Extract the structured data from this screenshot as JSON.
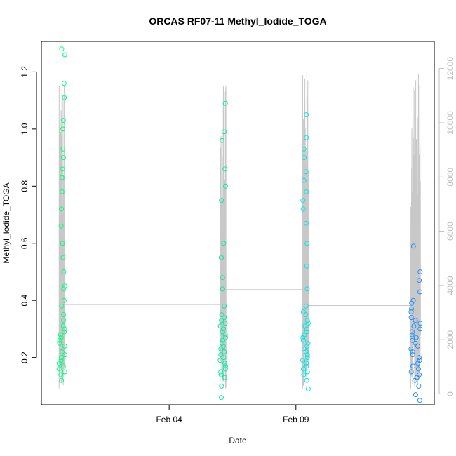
{
  "chart_data": {
    "type": "scatter",
    "title": "ORCAS RF07-11 Methyl_Iodide_TOGA",
    "xlabel": "Date",
    "ylabel": "Methyl_Iodide_TOGA",
    "y2label": "",
    "x_ticks": [
      {
        "date": "2016-02-04",
        "label": "Feb 04"
      },
      {
        "date": "2016-02-09",
        "label": "Feb 09"
      }
    ],
    "y_ticks": [
      0.2,
      0.4,
      0.6,
      0.8,
      1.0,
      1.2
    ],
    "y2_ticks": [
      0,
      2000,
      4000,
      6000,
      8000,
      10000,
      12000
    ],
    "xlim": [
      "2016-01-29T23:00",
      "2016-02-14T11:00"
    ],
    "ylim": [
      0.0346,
      1.3066
    ],
    "y2lim": [
      -400,
      13000
    ],
    "axes": {
      "right_axis_color": "#bdbdbd",
      "grid": false
    },
    "series": [
      {
        "color": "#00ff7f",
        "values": [
          [
            0.12,
            0.14
          ],
          [
            0.16,
            0.18
          ],
          [
            0.2,
            0.26
          ],
          [
            0.28,
            0.3
          ],
          [
            0.33,
            0.35
          ],
          [
            0.38,
            0.4
          ],
          [
            0.45,
            0.5
          ],
          [
            0.55,
            0.6
          ],
          [
            0.66,
            0.72
          ],
          [
            0.78,
            0.83
          ],
          [
            0.86,
            0.9
          ],
          [
            0.93,
            1.0
          ],
          [
            1.03,
            1.11
          ],
          [
            1.16,
            1.26
          ],
          [
            1.28,
            0.22
          ],
          [
            0.24,
            0.21
          ],
          [
            0.19,
            0.25
          ],
          [
            0.27,
            0.29
          ],
          [
            0.31,
            0.17
          ],
          [
            0.15,
            0.44
          ]
        ]
      },
      {
        "color": "#00f0a0",
        "values": [
          [
            0.06,
            0.1
          ],
          [
            0.13,
            0.15
          ],
          [
            0.17,
            0.18
          ],
          [
            0.2,
            0.22
          ],
          [
            0.24,
            0.26
          ],
          [
            0.28,
            0.3
          ],
          [
            0.32,
            0.35
          ],
          [
            0.38,
            0.44
          ],
          [
            0.48,
            0.55
          ],
          [
            0.6,
            0.75
          ],
          [
            0.8,
            0.86
          ],
          [
            0.96,
            0.99
          ],
          [
            1.09,
            0.23
          ],
          [
            0.25,
            0.27
          ],
          [
            0.19,
            0.21
          ],
          [
            0.29,
            0.31
          ],
          [
            0.34,
            0.16
          ],
          [
            0.14,
            0.33
          ]
        ]
      },
      {
        "color": "#00e8e8",
        "values": [
          [
            0.09,
            0.12
          ],
          [
            0.14,
            0.16
          ],
          [
            0.18,
            0.19
          ],
          [
            0.2,
            0.22
          ],
          [
            0.24,
            0.26
          ],
          [
            0.28,
            0.3
          ],
          [
            0.32,
            0.35
          ],
          [
            0.38,
            0.44
          ],
          [
            0.52,
            0.6
          ],
          [
            0.67,
            0.72
          ],
          [
            0.75,
            0.78
          ],
          [
            0.82,
            0.85
          ],
          [
            0.9,
            0.93
          ],
          [
            0.97,
            1.05
          ],
          [
            0.21,
            0.23
          ],
          [
            0.25,
            0.27
          ],
          [
            0.29,
            0.31
          ],
          [
            0.33,
            0.17
          ],
          [
            0.15,
            0.36
          ]
        ]
      },
      {
        "color": "#1e90ff",
        "values": [
          [
            0.05,
            0.07
          ],
          [
            0.1,
            0.12
          ],
          [
            0.14,
            0.16
          ],
          [
            0.18,
            0.19
          ],
          [
            0.2,
            0.22
          ],
          [
            0.24,
            0.26
          ],
          [
            0.28,
            0.3
          ],
          [
            0.32,
            0.34
          ],
          [
            0.37,
            0.4
          ],
          [
            0.43,
            0.47
          ],
          [
            0.5,
            0.59
          ],
          [
            0.21,
            0.23
          ],
          [
            0.25,
            0.27
          ],
          [
            0.29,
            0.31
          ],
          [
            0.33,
            0.17
          ],
          [
            0.15,
            0.36
          ],
          [
            0.39,
            0.13
          ]
        ]
      }
    ]
  }
}
